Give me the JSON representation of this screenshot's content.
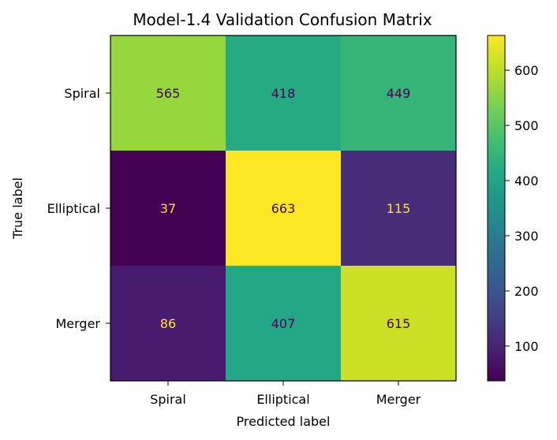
{
  "chart_data": {
    "type": "heatmap",
    "title": "Model-1.4 Validation Confusion Matrix",
    "xlabel": "Predicted label",
    "ylabel": "True label",
    "x_categories": [
      "Spiral",
      "Elliptical",
      "Merger"
    ],
    "y_categories": [
      "Spiral",
      "Elliptical",
      "Merger"
    ],
    "values": [
      [
        565,
        418,
        449
      ],
      [
        37,
        663,
        115
      ],
      [
        86,
        407,
        615
      ]
    ],
    "colormap": "viridis",
    "colorbar": {
      "range": [
        37,
        663
      ],
      "ticks": [
        100,
        200,
        300,
        400,
        500,
        600
      ]
    },
    "label_colors": {
      "dark": "#440154",
      "light": "#fde725"
    }
  }
}
